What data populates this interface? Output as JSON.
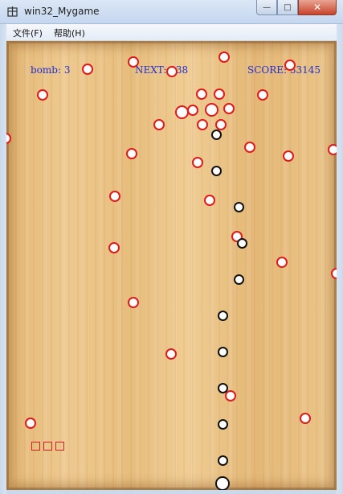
{
  "window": {
    "title": "win32_Mygame",
    "close_glyph": "✕",
    "max_glyph": "□",
    "min_glyph": "—"
  },
  "menu": [
    {
      "label": "文件(F)"
    },
    {
      "label": "帮助(H)"
    }
  ],
  "hud": {
    "bomb_label": "bomb: 3",
    "next_label": "NEXT: 338",
    "score_label": "SCORE: 33145"
  },
  "colors": {
    "enemy_ball": "#e01a1a",
    "player_ball": "#111111",
    "hud_text": "#1f2fd6",
    "lives": "#d42020"
  },
  "lives": 3
}
